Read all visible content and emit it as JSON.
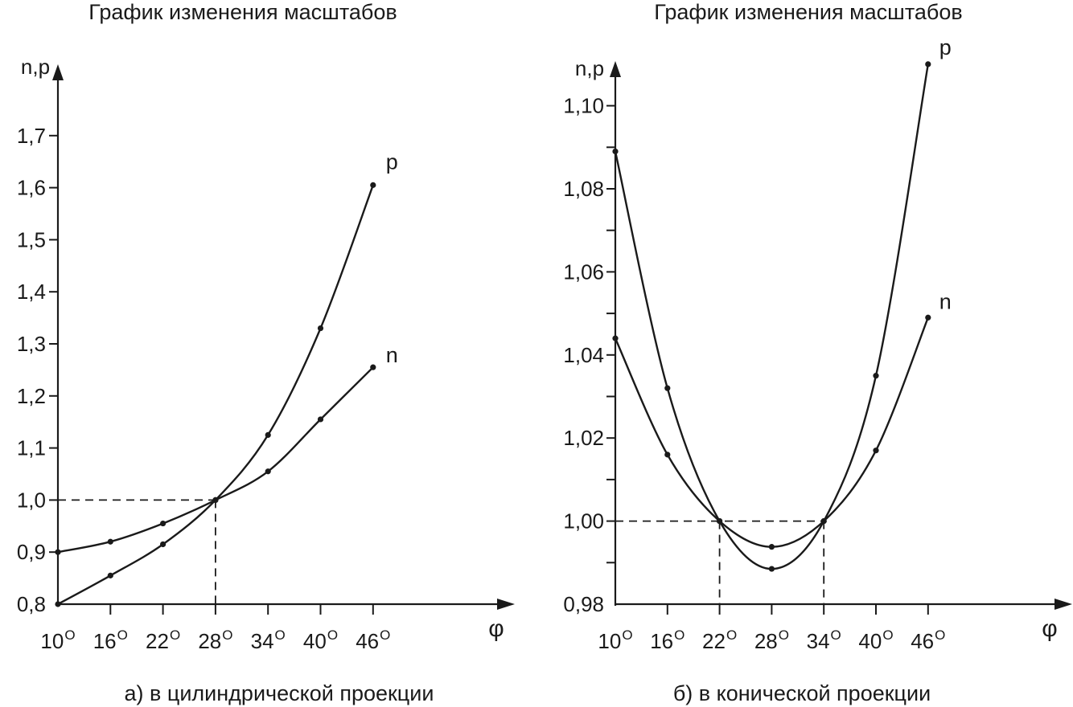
{
  "chart_data": [
    {
      "type": "line",
      "title": "График изменения масштабов",
      "caption": "а) в цилиндрической проекции",
      "ylabel": "n,p",
      "xlabel": "φ",
      "x": [
        10,
        16,
        22,
        28,
        34,
        40,
        46
      ],
      "x_tick_labels": [
        "10",
        "16",
        "22",
        "28",
        "34",
        "40",
        "46"
      ],
      "degree_mark": "O",
      "y_ticks": [
        0.8,
        0.9,
        1.0,
        1.1,
        1.2,
        1.3,
        1.4,
        1.5,
        1.6,
        1.7
      ],
      "y_tick_labels": [
        "0,8",
        "0,9",
        "1,0",
        "1,1",
        "1,2",
        "1,3",
        "1,4",
        "1,5",
        "1,6",
        "1,7"
      ],
      "ylim": [
        0.8,
        1.8
      ],
      "reference": {
        "y": 1.0,
        "x": [
          28
        ]
      },
      "series": [
        {
          "name": "p",
          "values": [
            0.8,
            0.855,
            0.915,
            1.0,
            1.125,
            1.33,
            1.605
          ]
        },
        {
          "name": "n",
          "values": [
            0.9,
            0.92,
            0.955,
            1.0,
            1.055,
            1.155,
            1.255
          ]
        }
      ]
    },
    {
      "type": "line",
      "title": "График изменения масштабов",
      "caption": "б) в конической проекции",
      "ylabel": "n,p",
      "xlabel": "φ",
      "x": [
        10,
        16,
        22,
        28,
        34,
        40,
        46
      ],
      "x_tick_labels": [
        "10",
        "16",
        "22",
        "28",
        "34",
        "40",
        "46"
      ],
      "degree_mark": "O",
      "y_ticks": [
        0.98,
        0.99,
        1.0,
        1.01,
        1.02,
        1.03,
        1.04,
        1.05,
        1.06,
        1.07,
        1.08,
        1.09,
        1.1
      ],
      "y_tick_labels": [
        "0,98",
        "",
        "1,00",
        "",
        "1,02",
        "",
        "1,04",
        "",
        "1,06",
        "",
        "1,08",
        "",
        "1,10"
      ],
      "ylim": [
        0.98,
        1.105
      ],
      "reference": {
        "y": 1.0,
        "x": [
          22,
          34
        ]
      },
      "series": [
        {
          "name": "p",
          "values": [
            1.089,
            1.032,
            1.0,
            0.9885,
            1.0,
            1.035,
            1.11
          ]
        },
        {
          "name": "n",
          "values": [
            1.044,
            1.016,
            1.0,
            0.9938,
            1.0,
            1.017,
            1.049
          ]
        }
      ]
    }
  ]
}
